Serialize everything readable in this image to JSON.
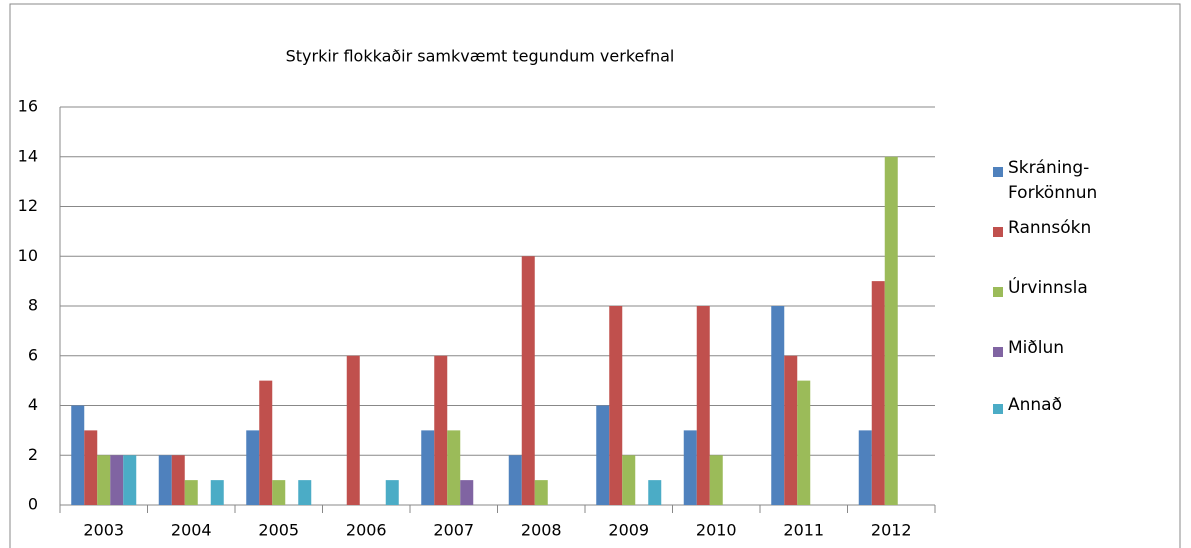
{
  "chart_data": {
    "type": "bar",
    "title": "Styrkir flokkaðir samkvæmt tegundum verkefnal",
    "categories": [
      "2003",
      "2004",
      "2005",
      "2006",
      "2007",
      "2008",
      "2009",
      "2010",
      "2011",
      "2012"
    ],
    "series": [
      {
        "name": "Skráning-Forkönnun",
        "color": "#4f81bd",
        "values": [
          4,
          2,
          3,
          0,
          3,
          2,
          4,
          3,
          8,
          3
        ]
      },
      {
        "name": "Rannsókn",
        "color": "#c0504d",
        "values": [
          3,
          2,
          5,
          6,
          6,
          10,
          8,
          8,
          6,
          9
        ]
      },
      {
        "name": "Úrvinnsla",
        "color": "#9bbb59",
        "values": [
          2,
          1,
          1,
          0,
          3,
          1,
          2,
          2,
          5,
          14
        ]
      },
      {
        "name": "Miðlun",
        "color": "#8064a2",
        "values": [
          2,
          0,
          0,
          0,
          1,
          0,
          0,
          0,
          0,
          0
        ]
      },
      {
        "name": "Annað",
        "color": "#4bacc6",
        "values": [
          2,
          1,
          1,
          1,
          0,
          0,
          1,
          0,
          0,
          0
        ]
      }
    ],
    "ylim": [
      0,
      16
    ],
    "yticks": [
      0,
      2,
      4,
      6,
      8,
      10,
      12,
      14,
      16
    ],
    "grid": true,
    "legend": "right"
  }
}
